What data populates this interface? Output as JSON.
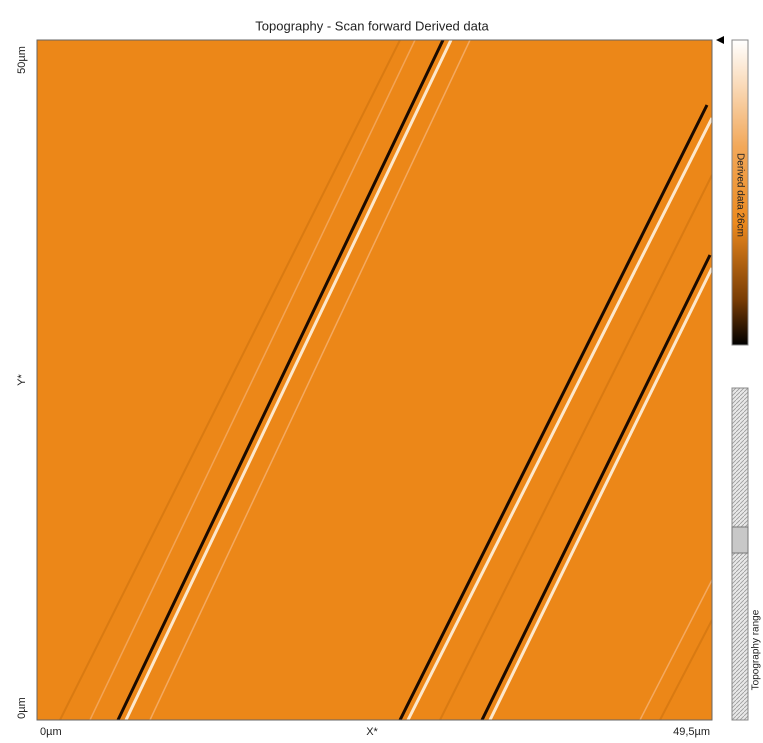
{
  "header": {
    "title": "Topography - Scan forward   Derived data"
  },
  "y_axis": {
    "top_label": "50µm",
    "middle_label": "Y*",
    "bottom_label": "0µm"
  },
  "x_axis": {
    "left_label": "0µm",
    "middle_label": "X*",
    "right_label": "49,5µm"
  },
  "colorbar": {
    "label": "Derived data 26cm"
  },
  "range_panel": {
    "label": "Topography range"
  }
}
